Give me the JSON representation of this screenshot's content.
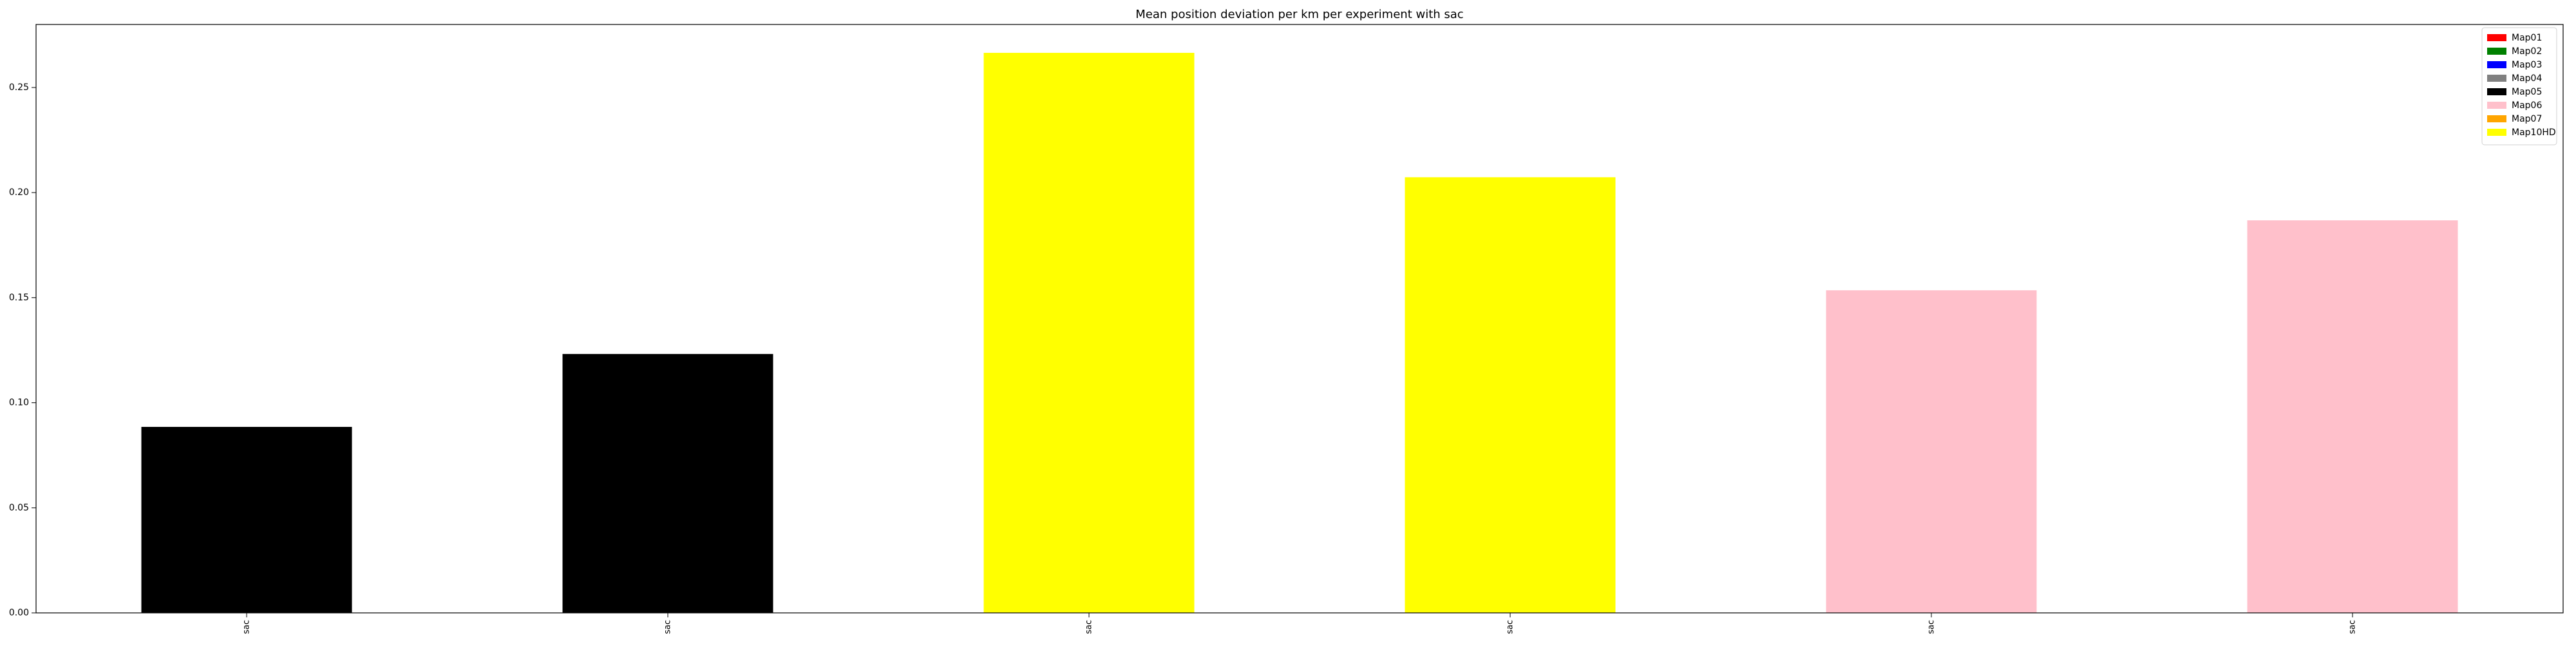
{
  "chart_data": {
    "type": "bar",
    "title": "Mean position deviation per km per experiment with sac",
    "xlabel": "",
    "ylabel": "",
    "categories": [
      "sac",
      "sac",
      "sac",
      "sac",
      "sac",
      "sac"
    ],
    "values": [
      0.0885,
      0.1232,
      0.2665,
      0.2073,
      0.1535,
      0.1868
    ],
    "bar_colors": [
      "#000000",
      "#000000",
      "#ffff00",
      "#ffff00",
      "#ffc0cb",
      "#ffc0cb"
    ],
    "ylim": [
      0,
      0.28
    ],
    "yticks": [
      0.0,
      0.05,
      0.1,
      0.15,
      0.2,
      0.25
    ],
    "ytick_labels": [
      "0.00",
      "0.05",
      "0.10",
      "0.15",
      "0.20",
      "0.25"
    ],
    "grid": false,
    "legend": {
      "placement": "top-right",
      "entries": [
        {
          "label": "Map01",
          "color": "#ff0000"
        },
        {
          "label": "Map02",
          "color": "#008000"
        },
        {
          "label": "Map03",
          "color": "#0000ff"
        },
        {
          "label": "Map04",
          "color": "#808080"
        },
        {
          "label": "Map05",
          "color": "#000000"
        },
        {
          "label": "Map06",
          "color": "#ffc0cb"
        },
        {
          "label": "Map07",
          "color": "#ffa500"
        },
        {
          "label": "Map10HD",
          "color": "#ffff00"
        }
      ]
    }
  }
}
